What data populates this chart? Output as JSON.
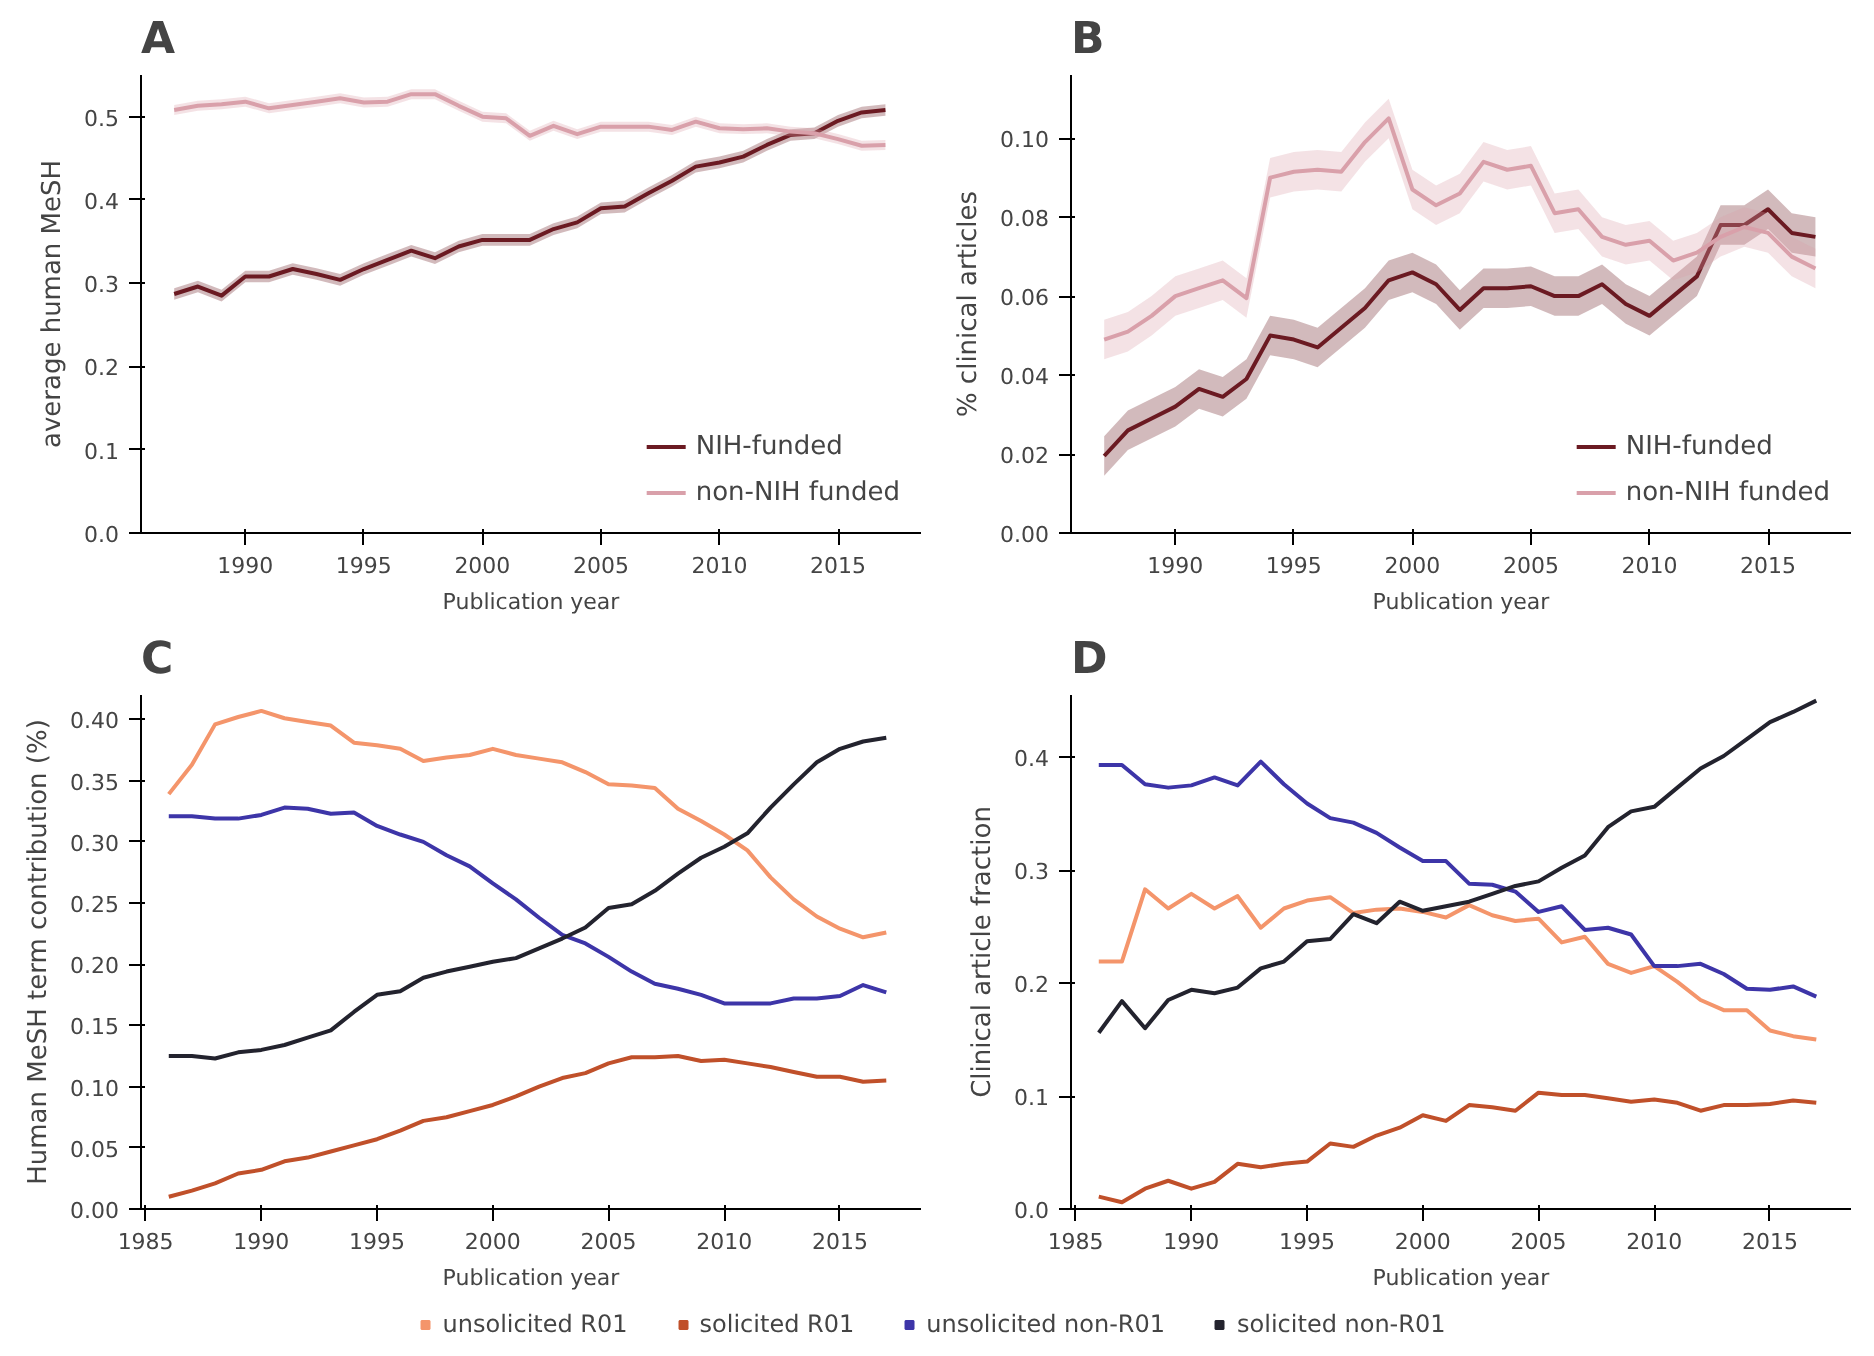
{
  "chart_data": [
    {
      "type": "line",
      "title": "A",
      "xlabel": "Publication year",
      "ylabel": "average human MeSH",
      "legend": "bottom right",
      "grid": false,
      "x": [
        1987,
        1988,
        1989,
        1990,
        1991,
        1992,
        1993,
        1994,
        1995,
        1996,
        1997,
        1998,
        1999,
        2000,
        2001,
        2002,
        2003,
        2004,
        2005,
        2006,
        2007,
        2008,
        2009,
        2010,
        2011,
        2012,
        2013,
        2014,
        2015,
        2016,
        2017
      ],
      "xlim": [
        1985.6,
        2018.5
      ],
      "xticks": [
        1990,
        1995,
        2000,
        2005,
        2010,
        2015
      ],
      "ylim": [
        0,
        0.55
      ],
      "yticks": [
        {
          "value": 0,
          "label": "0.0"
        },
        {
          "value": 0.1,
          "label": "0.1"
        },
        {
          "value": 0.2,
          "label": "0.2"
        },
        {
          "value": 0.3,
          "label": "0.3"
        },
        {
          "value": 0.4,
          "label": "0.4"
        },
        {
          "value": 0.5,
          "label": "0.5"
        }
      ],
      "series": [
        {
          "name": "NIH-funded",
          "color": "#6b1a22",
          "values": [
            0.287,
            0.296,
            0.285,
            0.308,
            0.308,
            0.317,
            0.311,
            0.304,
            0.317,
            0.328,
            0.339,
            0.33,
            0.344,
            0.352,
            0.352,
            0.352,
            0.365,
            0.373,
            0.39,
            0.392,
            0.408,
            0.423,
            0.44,
            0.445,
            0.452,
            0.466,
            0.478,
            0.48,
            0.495,
            0.505,
            0.508
          ],
          "lower": [
            0.28,
            0.289,
            0.278,
            0.301,
            0.301,
            0.31,
            0.304,
            0.297,
            0.31,
            0.321,
            0.332,
            0.323,
            0.337,
            0.345,
            0.345,
            0.345,
            0.358,
            0.366,
            0.383,
            0.385,
            0.401,
            0.416,
            0.433,
            0.438,
            0.445,
            0.459,
            0.471,
            0.473,
            0.488,
            0.498,
            0.501
          ],
          "upper": [
            0.294,
            0.303,
            0.292,
            0.315,
            0.315,
            0.324,
            0.318,
            0.311,
            0.324,
            0.335,
            0.346,
            0.337,
            0.351,
            0.359,
            0.359,
            0.359,
            0.372,
            0.38,
            0.397,
            0.399,
            0.415,
            0.43,
            0.447,
            0.452,
            0.459,
            0.473,
            0.485,
            0.487,
            0.502,
            0.512,
            0.515
          ]
        },
        {
          "name": "non-NIH funded",
          "color": "#d9a0aa",
          "values": [
            0.508,
            0.513,
            0.515,
            0.518,
            0.51,
            0.514,
            0.518,
            0.522,
            0.517,
            0.518,
            0.527,
            0.527,
            0.513,
            0.5,
            0.498,
            0.477,
            0.489,
            0.479,
            0.488,
            0.488,
            0.488,
            0.484,
            0.494,
            0.486,
            0.485,
            0.486,
            0.482,
            0.48,
            0.473,
            0.465,
            0.466
          ],
          "lower": [
            0.502,
            0.507,
            0.509,
            0.512,
            0.504,
            0.508,
            0.512,
            0.516,
            0.511,
            0.512,
            0.521,
            0.521,
            0.507,
            0.494,
            0.492,
            0.471,
            0.483,
            0.473,
            0.482,
            0.482,
            0.482,
            0.478,
            0.488,
            0.48,
            0.479,
            0.48,
            0.476,
            0.474,
            0.467,
            0.459,
            0.46
          ],
          "upper": [
            0.514,
            0.519,
            0.521,
            0.524,
            0.516,
            0.52,
            0.524,
            0.528,
            0.523,
            0.524,
            0.533,
            0.533,
            0.519,
            0.506,
            0.504,
            0.483,
            0.495,
            0.485,
            0.494,
            0.494,
            0.494,
            0.49,
            0.5,
            0.492,
            0.491,
            0.492,
            0.488,
            0.486,
            0.479,
            0.471,
            0.472
          ]
        }
      ]
    },
    {
      "type": "line",
      "title": "B",
      "xlabel": "Publication year",
      "ylabel": "% clinical articles",
      "legend": "bottom right",
      "grid": false,
      "x": [
        1987,
        1988,
        1989,
        1990,
        1991,
        1992,
        1993,
        1994,
        1995,
        1996,
        1997,
        1998,
        1999,
        2000,
        2001,
        2002,
        2003,
        2004,
        2005,
        2006,
        2007,
        2008,
        2009,
        2010,
        2011,
        2012,
        2013,
        2014,
        2015,
        2016,
        2017
      ],
      "xlim": [
        1985.6,
        2018.5
      ],
      "xticks": [
        1990,
        1995,
        2000,
        2005,
        2010,
        2015
      ],
      "ylim": [
        0,
        0.116
      ],
      "yticks": [
        {
          "value": 0,
          "label": "0.00"
        },
        {
          "value": 0.02,
          "label": "0.02"
        },
        {
          "value": 0.04,
          "label": "0.04"
        },
        {
          "value": 0.06,
          "label": "0.06"
        },
        {
          "value": 0.08,
          "label": "0.08"
        },
        {
          "value": 0.1,
          "label": "0.10"
        }
      ],
      "series": [
        {
          "name": "NIH-funded",
          "color": "#6b1a22",
          "values": [
            0.0195,
            0.026,
            0.029,
            0.032,
            0.0365,
            0.0345,
            0.039,
            0.05,
            0.049,
            0.047,
            0.052,
            0.057,
            0.064,
            0.066,
            0.063,
            0.0565,
            0.062,
            0.062,
            0.0625,
            0.06,
            0.06,
            0.063,
            0.058,
            0.055,
            0.06,
            0.065,
            0.078,
            0.078,
            0.082,
            0.076,
            0.075
          ],
          "lower": [
            0.0145,
            0.021,
            0.024,
            0.027,
            0.0315,
            0.0295,
            0.034,
            0.045,
            0.044,
            0.042,
            0.047,
            0.052,
            0.059,
            0.061,
            0.058,
            0.0515,
            0.057,
            0.057,
            0.0575,
            0.055,
            0.055,
            0.058,
            0.053,
            0.05,
            0.055,
            0.06,
            0.073,
            0.073,
            0.077,
            0.071,
            0.07
          ],
          "upper": [
            0.0245,
            0.031,
            0.034,
            0.037,
            0.0415,
            0.0395,
            0.044,
            0.055,
            0.054,
            0.052,
            0.057,
            0.062,
            0.069,
            0.071,
            0.068,
            0.0615,
            0.067,
            0.067,
            0.0675,
            0.065,
            0.065,
            0.068,
            0.063,
            0.06,
            0.065,
            0.07,
            0.083,
            0.083,
            0.087,
            0.081,
            0.08
          ]
        },
        {
          "name": "non-NIH funded",
          "color": "#d9a0aa",
          "values": [
            0.049,
            0.051,
            0.055,
            0.06,
            0.062,
            0.064,
            0.0595,
            0.09,
            0.0915,
            0.092,
            0.0915,
            0.099,
            0.105,
            0.087,
            0.083,
            0.086,
            0.094,
            0.092,
            0.093,
            0.081,
            0.082,
            0.075,
            0.073,
            0.074,
            0.069,
            0.071,
            0.075,
            0.0775,
            0.076,
            0.07,
            0.067
          ],
          "lower": [
            0.044,
            0.046,
            0.05,
            0.055,
            0.057,
            0.059,
            0.0545,
            0.085,
            0.0865,
            0.087,
            0.0865,
            0.094,
            0.1,
            0.082,
            0.078,
            0.081,
            0.089,
            0.087,
            0.088,
            0.076,
            0.077,
            0.07,
            0.068,
            0.069,
            0.064,
            0.066,
            0.07,
            0.0725,
            0.071,
            0.065,
            0.062
          ],
          "upper": [
            0.054,
            0.056,
            0.06,
            0.065,
            0.067,
            0.069,
            0.0645,
            0.095,
            0.0965,
            0.097,
            0.0965,
            0.104,
            0.11,
            0.092,
            0.088,
            0.091,
            0.099,
            0.097,
            0.098,
            0.086,
            0.087,
            0.08,
            0.078,
            0.079,
            0.074,
            0.076,
            0.08,
            0.0825,
            0.081,
            0.075,
            0.072
          ]
        }
      ]
    },
    {
      "type": "line",
      "title": "C",
      "xlabel": "Publication year",
      "ylabel": "Human MeSH term contribution (%)",
      "legend": "bottom",
      "grid": false,
      "x": [
        1986,
        1987,
        1988,
        1989,
        1990,
        1991,
        1992,
        1993,
        1994,
        1995,
        1996,
        1997,
        1998,
        1999,
        2000,
        2001,
        2002,
        2003,
        2004,
        2005,
        2006,
        2007,
        2008,
        2009,
        2010,
        2011,
        2012,
        2013,
        2014,
        2015,
        2016,
        2017
      ],
      "xlim": [
        1984.8,
        2018.5
      ],
      "xticks": [
        1985,
        1990,
        1995,
        2000,
        2005,
        2010,
        2015
      ],
      "ylim": [
        0,
        0.42
      ],
      "yticks": [
        {
          "value": 0,
          "label": "0.00"
        },
        {
          "value": 0.05,
          "label": "0.05"
        },
        {
          "value": 0.1,
          "label": "0.10"
        },
        {
          "value": 0.15,
          "label": "0.15"
        },
        {
          "value": 0.2,
          "label": "0.20"
        },
        {
          "value": 0.25,
          "label": "0.25"
        },
        {
          "value": 0.3,
          "label": "0.30"
        },
        {
          "value": 0.35,
          "label": "0.35"
        },
        {
          "value": 0.4,
          "label": "0.40"
        }
      ],
      "series": [
        {
          "name": "unsolicited R01",
          "color": "#f4956b",
          "values": [
            0.339,
            0.363,
            0.396,
            0.402,
            0.407,
            0.401,
            0.398,
            0.395,
            0.381,
            0.379,
            0.376,
            0.366,
            0.369,
            0.371,
            0.376,
            0.371,
            0.368,
            0.365,
            0.357,
            0.347,
            0.346,
            0.344,
            0.327,
            0.317,
            0.306,
            0.293,
            0.271,
            0.253,
            0.239,
            0.229,
            0.222,
            0.226
          ]
        },
        {
          "name": "solicited R01",
          "color": "#c0502a",
          "values": [
            0.01,
            0.015,
            0.021,
            0.029,
            0.032,
            0.039,
            0.042,
            0.047,
            0.052,
            0.057,
            0.064,
            0.072,
            0.075,
            0.08,
            0.085,
            0.092,
            0.1,
            0.107,
            0.111,
            0.119,
            0.124,
            0.124,
            0.125,
            0.121,
            0.122,
            0.119,
            0.116,
            0.112,
            0.108,
            0.108,
            0.104,
            0.105
          ]
        },
        {
          "name": "unsolicited non-R01",
          "color": "#3d35a8",
          "values": [
            0.321,
            0.321,
            0.319,
            0.319,
            0.322,
            0.328,
            0.327,
            0.323,
            0.324,
            0.313,
            0.306,
            0.3,
            0.289,
            0.28,
            0.266,
            0.253,
            0.238,
            0.224,
            0.217,
            0.206,
            0.194,
            0.184,
            0.18,
            0.175,
            0.168,
            0.168,
            0.168,
            0.172,
            0.172,
            0.174,
            0.183,
            0.177
          ]
        },
        {
          "name": "solicited non-R01",
          "color": "#23232e",
          "values": [
            0.125,
            0.125,
            0.123,
            0.128,
            0.13,
            0.134,
            0.14,
            0.146,
            0.161,
            0.175,
            0.178,
            0.189,
            0.194,
            0.198,
            0.202,
            0.205,
            0.213,
            0.221,
            0.23,
            0.246,
            0.249,
            0.26,
            0.274,
            0.287,
            0.296,
            0.307,
            0.328,
            0.347,
            0.365,
            0.376,
            0.382,
            0.385
          ]
        }
      ]
    },
    {
      "type": "line",
      "title": "D",
      "xlabel": "Publication year",
      "ylabel": "Clinical article fraction",
      "grid": false,
      "x": [
        1986,
        1987,
        1988,
        1989,
        1990,
        1991,
        1992,
        1993,
        1994,
        1995,
        1996,
        1997,
        1998,
        1999,
        2000,
        2001,
        2002,
        2003,
        2004,
        2005,
        2006,
        2007,
        2008,
        2009,
        2010,
        2011,
        2012,
        2013,
        2014,
        2015,
        2016,
        2017
      ],
      "xlim": [
        1984.8,
        2018.5
      ],
      "xticks": [
        1985,
        1990,
        1995,
        2000,
        2005,
        2010,
        2015
      ],
      "ylim": [
        0,
        0.455
      ],
      "yticks": [
        {
          "value": 0,
          "label": "0.0"
        },
        {
          "value": 0.1,
          "label": "0.1"
        },
        {
          "value": 0.2,
          "label": "0.2"
        },
        {
          "value": 0.3,
          "label": "0.3"
        },
        {
          "value": 0.4,
          "label": "0.4"
        }
      ],
      "series": [
        {
          "color": "#f4956b",
          "values": [
            0.219,
            0.219,
            0.283,
            0.266,
            0.279,
            0.266,
            0.277,
            0.249,
            0.266,
            0.273,
            0.276,
            0.262,
            0.265,
            0.266,
            0.263,
            0.258,
            0.269,
            0.26,
            0.255,
            0.257,
            0.236,
            0.241,
            0.217,
            0.209,
            0.215,
            0.201,
            0.185,
            0.176,
            0.176,
            0.158,
            0.153,
            0.15
          ]
        },
        {
          "color": "#c0502a",
          "values": [
            0.011,
            0.006,
            0.018,
            0.025,
            0.018,
            0.024,
            0.04,
            0.037,
            0.04,
            0.042,
            0.058,
            0.055,
            0.065,
            0.072,
            0.083,
            0.078,
            0.092,
            0.09,
            0.087,
            0.103,
            0.101,
            0.101,
            0.098,
            0.095,
            0.097,
            0.094,
            0.087,
            0.092,
            0.092,
            0.093,
            0.096,
            0.094
          ]
        },
        {
          "color": "#3d35a8",
          "values": [
            0.393,
            0.393,
            0.376,
            0.373,
            0.375,
            0.382,
            0.375,
            0.396,
            0.376,
            0.359,
            0.346,
            0.342,
            0.333,
            0.32,
            0.308,
            0.308,
            0.288,
            0.287,
            0.281,
            0.263,
            0.268,
            0.247,
            0.249,
            0.243,
            0.215,
            0.215,
            0.217,
            0.208,
            0.195,
            0.194,
            0.197,
            0.188
          ]
        },
        {
          "color": "#23232e",
          "values": [
            0.156,
            0.184,
            0.16,
            0.185,
            0.194,
            0.191,
            0.196,
            0.213,
            0.219,
            0.237,
            0.239,
            0.261,
            0.253,
            0.272,
            0.264,
            0.268,
            0.272,
            0.279,
            0.286,
            0.29,
            0.302,
            0.313,
            0.338,
            0.352,
            0.356,
            0.373,
            0.39,
            0.401,
            0.416,
            0.431,
            0.44,
            0.45
          ]
        }
      ]
    }
  ]
}
